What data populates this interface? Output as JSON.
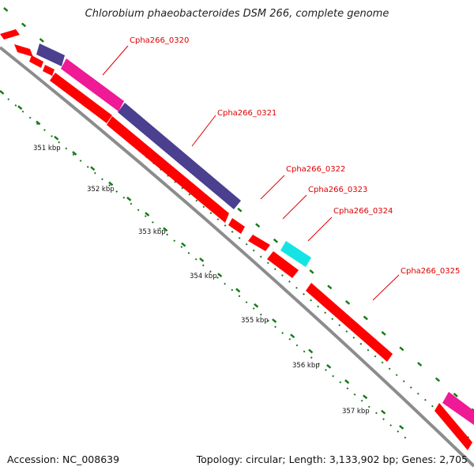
{
  "title": "Chlorobium phaeobacteroides DSM 266, complete genome",
  "footer": {
    "accession": "Accession: NC_008639",
    "summary": "Topology: circular; Length: 3,133,902 bp; Genes: 2,705"
  },
  "colors": {
    "backbone": "#8c8c8c",
    "tick": "#1a7a1a",
    "label": "#dd0000",
    "gene_default": "#ff0000",
    "gene_purple": "#4b3f8f",
    "gene_magenta": "#ee1a96",
    "gene_cyan": "#16e4e4"
  },
  "kbp_labels": [
    "351 kbp",
    "352 kbp",
    "353 kbp",
    "354 kbp",
    "355 kbp",
    "356 kbp",
    "357 kbp"
  ],
  "gene_labels": [
    "Cpha266_0320",
    "Cpha266_0321",
    "Cpha266_0322",
    "Cpha266_0323",
    "Cpha266_0324",
    "Cpha266_0325"
  ]
}
